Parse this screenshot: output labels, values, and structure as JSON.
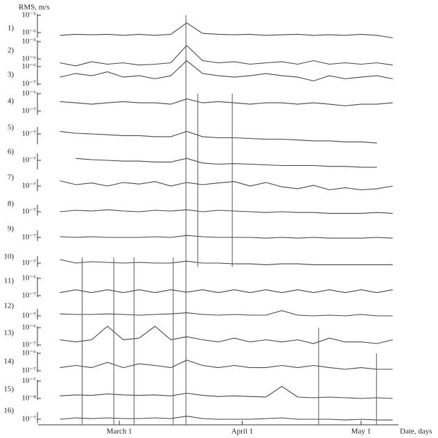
{
  "chart_data": {
    "type": "line",
    "yscale": "log",
    "ylabel": "RMS, m/s",
    "xlabel": "Date, days",
    "xlim": [
      39.5,
      131.5
    ],
    "xticks": [
      {
        "value": 60,
        "label": "March 1"
      },
      {
        "value": 91,
        "label": "April 1"
      },
      {
        "value": 121,
        "label": "May 1"
      }
    ],
    "x": [
      45,
      49,
      53,
      57,
      61,
      65,
      69,
      73,
      77,
      81,
      85,
      89,
      93,
      97,
      101,
      105,
      109,
      113,
      117,
      121,
      125,
      129
    ],
    "color": "#444444",
    "panels": [
      {
        "label": "1)",
        "ylim": [
          5e-07,
          1.2e-05
        ],
        "yticks": [
          {
            "value": 1e-05,
            "label": "10⁻⁵"
          },
          {
            "value": 1e-06,
            "label": "10⁻⁶"
          }
        ],
        "values": [
          7e-07,
          8e-07,
          7.5e-07,
          8e-07,
          7e-07,
          8e-07,
          7e-07,
          8e-07,
          3.6e-06,
          9e-07,
          8e-07,
          7.5e-07,
          8e-07,
          7e-07,
          7.5e-07,
          8e-07,
          7e-07,
          7.5e-07,
          7e-07,
          8e-07,
          7e-07,
          5e-07
        ]
      },
      {
        "label": "2)",
        "ylim": [
          4e-07,
          1.2e-05
        ],
        "yticks": [
          {
            "value": 1e-05,
            "label": "10⁻⁵"
          },
          {
            "value": 1e-06,
            "label": "10⁻⁶"
          }
        ],
        "values": [
          6e-07,
          4e-07,
          7e-07,
          5e-07,
          6e-07,
          4.5e-07,
          5e-07,
          6e-07,
          6e-06,
          8e-07,
          6e-07,
          7e-07,
          5e-07,
          6e-07,
          7e-07,
          5e-07,
          8e-07,
          5e-07,
          6e-07,
          5e-07,
          6e-07,
          4.5e-07
        ]
      },
      {
        "label": "3)",
        "ylim": [
          8e-08,
          1.2e-06
        ],
        "yticks": [
          {
            "value": 1e-06,
            "label": "10⁻⁶"
          },
          {
            "value": 1e-07,
            "label": "10⁻⁷"
          }
        ],
        "values": [
          2.5e-07,
          4e-07,
          3e-07,
          5e-07,
          2.5e-07,
          3e-07,
          2e-07,
          3e-07,
          2.2e-06,
          4e-07,
          3e-07,
          2.5e-07,
          3e-07,
          4e-07,
          3e-07,
          2.5e-07,
          1.5e-07,
          3e-07,
          2e-07,
          2.5e-07,
          3e-07,
          2e-07
        ]
      },
      {
        "label": "4)",
        "ylim": [
          6e-08,
          1.2e-06
        ],
        "yticks": [
          {
            "value": 1e-06,
            "label": "10⁻⁶"
          },
          {
            "value": 1e-07,
            "label": "10⁻⁷"
          }
        ],
        "values": [
          3.5e-07,
          3e-07,
          2.5e-07,
          3e-07,
          3.5e-07,
          3e-07,
          3e-07,
          2.5e-07,
          5e-07,
          3e-07,
          3.5e-07,
          3e-07,
          2.5e-07,
          3e-07,
          3e-07,
          2.5e-07,
          3e-07,
          2.5e-07,
          2e-07,
          2.5e-07,
          2.5e-07,
          3e-07
        ]
      },
      {
        "label": "5)",
        "ylim": [
          2.5e-08,
          2.5e-07
        ],
        "yticks": [
          {
            "value": 1e-07,
            "label": "10⁻⁷"
          }
        ],
        "values": [
          1.4e-07,
          1.1e-07,
          1e-07,
          9e-08,
          8e-08,
          8e-08,
          7e-08,
          7e-08,
          1.4e-07,
          7e-08,
          6e-08,
          6e-08,
          5.5e-08,
          5e-08,
          5e-08,
          4.5e-08,
          4e-08,
          4e-08,
          3.5e-08,
          3.5e-08,
          3e-08,
          null
        ]
      },
      {
        "label": "6)",
        "ylim": [
          3e-08,
          2.5e-07
        ],
        "yticks": [
          {
            "value": 1e-07,
            "label": "10⁻⁷"
          }
        ],
        "values": [
          null,
          1.3e-07,
          1.1e-07,
          1e-07,
          9e-08,
          9e-08,
          8e-08,
          8e-08,
          1.3e-07,
          7e-08,
          6e-08,
          6.5e-08,
          6e-08,
          5.5e-08,
          5e-08,
          5e-08,
          5e-08,
          4.5e-08,
          4.5e-08,
          4e-08,
          4e-08,
          null
        ]
      },
      {
        "label": "7)",
        "ylim": [
          5e-08,
          2.5e-07
        ],
        "yticks": [
          {
            "value": 1e-07,
            "label": "10⁻⁷"
          }
        ],
        "values": [
          2e-07,
          1.2e-07,
          1.5e-07,
          1e-07,
          1.6e-07,
          1.3e-07,
          1.8e-07,
          1e-07,
          1.6e-07,
          1.2e-07,
          1.5e-07,
          1.8e-07,
          1e-07,
          1.6e-07,
          9e-08,
          7e-08,
          1.1e-07,
          6e-08,
          8e-08,
          6e-08,
          7e-08,
          1e-07
        ]
      },
      {
        "label": "8)",
        "ylim": [
          6e-08,
          2.5e-07
        ],
        "yticks": [
          {
            "value": 1e-07,
            "label": "10⁻⁷"
          }
        ],
        "values": [
          1e-07,
          1.2e-07,
          1.1e-07,
          1.3e-07,
          1.1e-07,
          1e-07,
          1.2e-07,
          1.1e-07,
          1.3e-07,
          1e-07,
          1.2e-07,
          1.1e-07,
          1e-07,
          9e-08,
          1e-07,
          9e-08,
          9e-08,
          8e-08,
          8e-08,
          8e-08,
          9e-08,
          8e-08
        ]
      },
      {
        "label": "9)",
        "ylim": [
          6e-08,
          2.5e-07
        ],
        "yticks": [
          {
            "value": 1e-07,
            "label": "10⁻⁷"
          }
        ],
        "values": [
          1.1e-07,
          1e-07,
          1.1e-07,
          1e-07,
          1e-07,
          1e-07,
          1.1e-07,
          1e-07,
          1.3e-07,
          1.1e-07,
          1e-07,
          1e-07,
          1e-07,
          9e-08,
          1e-07,
          9e-08,
          1e-07,
          9e-08,
          9e-08,
          9e-08,
          1e-07,
          9e-08
        ]
      },
      {
        "label": "10)",
        "ylim": [
          6e-08,
          2.5e-07
        ],
        "yticks": [
          {
            "value": 1e-07,
            "label": "10⁻⁷"
          }
        ],
        "values": [
          1.6e-07,
          1e-07,
          1.2e-07,
          1.1e-07,
          1e-07,
          1.1e-07,
          1e-07,
          1e-07,
          1.3e-07,
          1e-07,
          1e-07,
          9e-08,
          9e-08,
          8e-08,
          9e-08,
          9e-08,
          8e-08,
          8e-08,
          8e-08,
          8e-08,
          8e-08,
          8e-08
        ]
      },
      {
        "label": "11)",
        "ylim": [
          8e-08,
          1.2e-06
        ],
        "yticks": [
          {
            "value": 1e-06,
            "label": "10⁻⁶"
          },
          {
            "value": 1e-07,
            "label": "10⁻⁷"
          }
        ],
        "values": [
          1.5e-07,
          2.2e-07,
          1.5e-07,
          2.2e-07,
          1.5e-07,
          2.2e-07,
          1.5e-07,
          2.2e-07,
          1.6e-07,
          2.2e-07,
          1.5e-07,
          2.2e-07,
          1.5e-07,
          2.2e-07,
          1.5e-07,
          2.2e-07,
          1.5e-07,
          2.2e-07,
          1.5e-07,
          2.2e-07,
          1.5e-07,
          2.2e-07
        ]
      },
      {
        "label": "12)",
        "ylim": [
          6e-08,
          2.5e-07
        ],
        "yticks": [
          {
            "value": 1e-07,
            "label": "10⁻⁷"
          }
        ],
        "values": [
          1.3e-07,
          1.2e-07,
          1.2e-07,
          1.3e-07,
          1.2e-07,
          1.1e-07,
          1.2e-07,
          1.3e-07,
          1.5e-07,
          1.2e-07,
          1.1e-07,
          1.2e-07,
          1.1e-07,
          1.1e-07,
          2e-07,
          1.1e-07,
          1e-07,
          1.1e-07,
          1e-07,
          1.2e-07,
          1e-07,
          1e-07
        ]
      },
      {
        "label": "13)",
        "ylim": [
          8e-08,
          1.2e-06
        ],
        "yticks": [
          {
            "value": 1e-06,
            "label": "10⁻⁶"
          },
          {
            "value": 1e-07,
            "label": "10⁻⁷"
          }
        ],
        "values": [
          2e-07,
          1.5e-07,
          2e-07,
          1.2e-06,
          2e-07,
          2.5e-07,
          1.2e-06,
          2e-07,
          3e-07,
          2e-07,
          1.5e-07,
          2.5e-07,
          1.5e-07,
          2e-07,
          1.5e-07,
          2e-07,
          1.2e-07,
          2.5e-07,
          1.5e-07,
          1.5e-07,
          1.2e-07,
          2e-07
        ]
      },
      {
        "label": "14)",
        "ylim": [
          8e-08,
          1.2e-06
        ],
        "yticks": [
          {
            "value": 1e-06,
            "label": "10⁻⁶"
          },
          {
            "value": 1e-07,
            "label": "10⁻⁷"
          }
        ],
        "values": [
          1.5e-07,
          2e-07,
          1.5e-07,
          3e-07,
          1.5e-07,
          2.5e-07,
          2e-07,
          1.5e-07,
          4e-07,
          2e-07,
          1.5e-07,
          2e-07,
          1.5e-07,
          1.5e-07,
          2e-07,
          1.5e-07,
          2e-07,
          1.5e-07,
          1.2e-07,
          1.5e-07,
          1.2e-07,
          1.2e-07
        ]
      },
      {
        "label": "15)",
        "ylim": [
          8e-09,
          1.2e-07
        ],
        "yticks": [
          {
            "value": 1e-07,
            "label": "10⁻⁷"
          },
          {
            "value": 1e-08,
            "label": "10⁻⁸"
          }
        ],
        "values": [
          1.4e-08,
          1.6e-08,
          1.5e-08,
          1.8e-08,
          1.6e-08,
          1.5e-08,
          1.6e-08,
          1.4e-08,
          2e-08,
          1.5e-08,
          1.3e-08,
          1.4e-08,
          1.3e-08,
          1.2e-08,
          5e-08,
          1.2e-08,
          1.1e-08,
          1.2e-08,
          1.1e-08,
          1e-08,
          1.1e-08,
          1e-08
        ]
      },
      {
        "label": "16)",
        "ylim": [
          6e-08,
          2.5e-07
        ],
        "yticks": [
          {
            "value": 1e-07,
            "label": "10⁻⁷"
          }
        ],
        "values": [
          1e-07,
          1.2e-07,
          1.1e-07,
          1.2e-07,
          1.1e-07,
          1.1e-07,
          1.2e-07,
          1.1e-07,
          1.5e-07,
          1.1e-07,
          1e-07,
          1e-07,
          1e-07,
          1.1e-07,
          1.2e-07,
          1e-07,
          1e-07,
          1e-07,
          9e-08,
          1e-07,
          9e-08,
          9e-08
        ]
      }
    ],
    "markers": [
      {
        "x": 76.8,
        "panels": [
          1,
          16
        ]
      },
      {
        "x": 79.8,
        "panels": [
          4,
          10
        ]
      },
      {
        "x": 88.5,
        "panels": [
          4,
          10
        ]
      },
      {
        "x": 50.6,
        "panels": [
          10,
          16
        ]
      },
      {
        "x": 58.6,
        "panels": [
          10,
          16
        ]
      },
      {
        "x": 63.7,
        "panels": [
          10,
          16
        ]
      },
      {
        "x": 73.6,
        "panels": [
          10,
          16
        ]
      },
      {
        "x": 110.3,
        "panels": [
          13,
          16
        ]
      },
      {
        "x": 124.9,
        "panels": [
          14,
          16
        ]
      }
    ]
  }
}
